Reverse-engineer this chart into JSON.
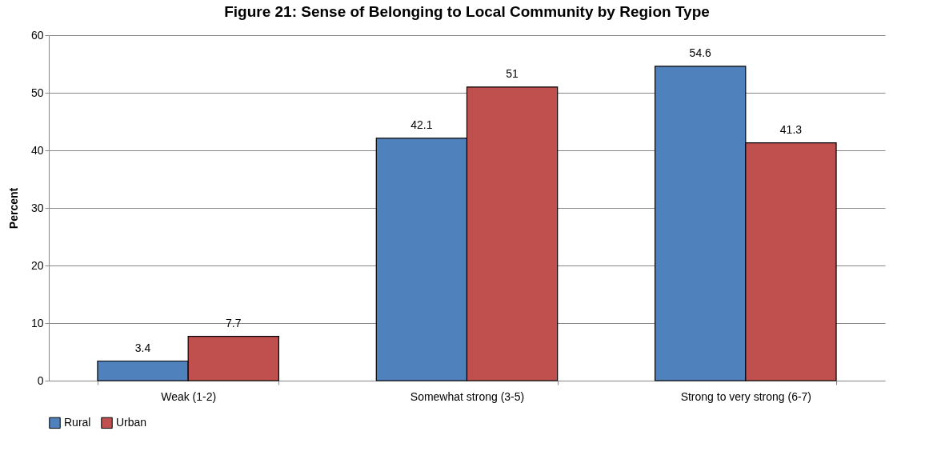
{
  "chart_data": {
    "type": "bar",
    "title": "Figure 21: Sense of Belonging to Local Community by Region Type",
    "ylabel": "Percent",
    "categories": [
      "Weak (1-2)",
      "Somewhat strong (3-5)",
      "Strong to very strong (6-7)"
    ],
    "series": [
      {
        "name": "Rural",
        "color": "#4f81bd",
        "values": [
          3.4,
          42.1,
          54.6
        ]
      },
      {
        "name": "Urban",
        "color": "#c0504d",
        "values": [
          7.7,
          51,
          41.3
        ]
      }
    ],
    "ylim": [
      0,
      60
    ],
    "yticks": [
      0,
      10,
      20,
      30,
      40,
      50,
      60
    ],
    "grid": "y",
    "legend": "bottom",
    "data_labels": true
  }
}
